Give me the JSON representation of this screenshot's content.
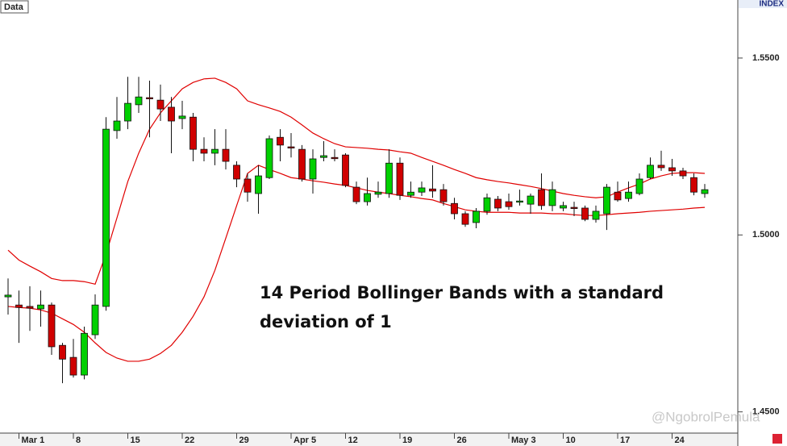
{
  "chart_data": {
    "type": "candlestick",
    "source_label": "Data",
    "axis_label": "INDEX",
    "annotation": [
      "14 Period Bollinger Bands with a standard",
      "deviation of 1"
    ],
    "watermark": "@NgobrolPemula",
    "up_color": "#00d000",
    "down_color": "#d00000",
    "categories": [
      null,
      "Mar 1",
      null,
      null,
      null,
      null,
      "8",
      null,
      null,
      null,
      null,
      "15",
      null,
      null,
      null,
      null,
      "22",
      null,
      null,
      null,
      null,
      "29",
      null,
      null,
      null,
      null,
      "Apr 5",
      null,
      null,
      null,
      null,
      "12",
      null,
      null,
      null,
      null,
      "19",
      null,
      null,
      null,
      null,
      "26",
      null,
      null,
      null,
      null,
      "May 3",
      null,
      null,
      null,
      null,
      "10",
      null,
      null,
      null,
      null,
      "17",
      null,
      null,
      null,
      null,
      "24",
      null,
      null,
      null
    ],
    "open": [
      1.4825,
      1.4802,
      1.4798,
      1.4791,
      1.4802,
      1.4688,
      1.4654,
      1.4604,
      1.4718,
      1.4798,
      1.5295,
      1.5322,
      1.5368,
      1.5388,
      1.5381,
      1.5361,
      1.5329,
      1.5333,
      1.5242,
      1.5231,
      1.5242,
      1.5197,
      1.5158,
      1.5117,
      1.5162,
      1.5276,
      1.5249,
      1.5242,
      1.5158,
      1.5219,
      1.5219,
      1.5226,
      1.5135,
      1.5094,
      1.5115,
      1.5117,
      1.5203,
      1.5112,
      1.5121,
      1.513,
      1.5128,
      1.5089,
      1.506,
      1.5035,
      1.5067,
      1.5101,
      1.5094,
      1.5094,
      1.5087,
      1.5128,
      1.5083,
      1.5076,
      1.5078,
      1.5076,
      1.5044,
      1.506,
      1.5121,
      1.5103,
      1.5117,
      1.5162,
      1.5197,
      1.519,
      1.5181,
      1.5162,
      1.5117
    ],
    "high": [
      1.4877,
      1.4843,
      1.4855,
      1.4843,
      1.4809,
      1.4695,
      1.4706,
      1.4741,
      1.4832,
      1.5333,
      1.539,
      1.5447,
      1.5447,
      1.5436,
      1.5425,
      1.539,
      1.5379,
      1.5345,
      1.5276,
      1.5299,
      1.5299,
      1.5208,
      1.5174,
      1.5197,
      1.5281,
      1.5299,
      1.5288,
      1.5254,
      1.5242,
      1.5265,
      1.5242,
      1.5231,
      1.5151,
      1.5162,
      1.5151,
      1.5242,
      1.5219,
      1.5151,
      1.5151,
      1.5197,
      1.5144,
      1.5105,
      1.5067,
      1.5076,
      1.5117,
      1.511,
      1.5117,
      1.5128,
      1.5117,
      1.5174,
      1.5151,
      1.5094,
      1.5094,
      1.5083,
      1.5083,
      1.5144,
      1.5151,
      1.5151,
      1.5174,
      1.5219,
      1.5238,
      1.5215,
      1.519,
      1.5174,
      1.5144
    ],
    "low": [
      1.4775,
      1.4695,
      1.4729,
      1.4741,
      1.4661,
      1.4581,
      1.4597,
      1.4592,
      1.4706,
      1.4786,
      1.5272,
      1.5299,
      1.5345,
      1.5276,
      1.5322,
      1.5231,
      1.5299,
      1.5208,
      1.5208,
      1.5197,
      1.5185,
      1.5135,
      1.5094,
      1.506,
      1.5158,
      1.5208,
      1.5219,
      1.5151,
      1.5117,
      1.5208,
      1.5208,
      1.5135,
      1.5087,
      1.5083,
      1.5105,
      1.5105,
      1.5099,
      1.5105,
      1.511,
      1.5105,
      1.5083,
      1.5044,
      1.5023,
      1.5019,
      1.5057,
      1.5067,
      1.5071,
      1.5083,
      1.506,
      1.5071,
      1.5067,
      1.5067,
      1.5053,
      1.5039,
      1.5035,
      1.5014,
      1.5094,
      1.5094,
      1.5112,
      1.5158,
      1.5181,
      1.5167,
      1.5158,
      1.5112,
      1.5105
    ],
    "close": [
      1.483,
      1.4795,
      1.4793,
      1.4802,
      1.4684,
      1.4649,
      1.4604,
      1.4722,
      1.4802,
      1.5299,
      1.5322,
      1.5372,
      1.539,
      1.5386,
      1.5356,
      1.5322,
      1.5336,
      1.5242,
      1.5231,
      1.5242,
      1.5208,
      1.5158,
      1.5121,
      1.5167,
      1.5272,
      1.5254,
      1.5247,
      1.5158,
      1.5215,
      1.5224,
      1.5217,
      1.514,
      1.5094,
      1.5117,
      1.5121,
      1.5203,
      1.5112,
      1.5121,
      1.5133,
      1.5124,
      1.5094,
      1.506,
      1.503,
      1.5067,
      1.5105,
      1.5076,
      1.508,
      1.5096,
      1.511,
      1.5083,
      1.5128,
      1.5083,
      1.5076,
      1.5044,
      1.5067,
      1.5135,
      1.5099,
      1.5121,
      1.5158,
      1.5197,
      1.519,
      1.5181,
      1.5167,
      1.5121,
      1.5128
    ],
    "bands": {
      "color": "#e00000",
      "upper": [
        1.4957,
        1.4929,
        1.4912,
        1.4896,
        1.4877,
        1.4871,
        1.4871,
        1.4868,
        1.4861,
        1.4946,
        1.5048,
        1.5151,
        1.5231,
        1.5299,
        1.5345,
        1.5379,
        1.5413,
        1.5431,
        1.5441,
        1.5443,
        1.5431,
        1.5413,
        1.5379,
        1.5368,
        1.5359,
        1.5349,
        1.5333,
        1.5311,
        1.5288,
        1.5272,
        1.5258,
        1.5249,
        1.5247,
        1.5245,
        1.5242,
        1.524,
        1.5235,
        1.5231,
        1.5219,
        1.5208,
        1.5197,
        1.5185,
        1.5174,
        1.5162,
        1.5156,
        1.5151,
        1.5147,
        1.5142,
        1.5137,
        1.5131,
        1.5124,
        1.5117,
        1.5112,
        1.5108,
        1.5105,
        1.5108,
        1.5121,
        1.5133,
        1.5144,
        1.5158,
        1.5167,
        1.5174,
        1.5176,
        1.5176,
        1.5174
      ],
      "lower": [
        1.4798,
        1.4795,
        1.4793,
        1.4788,
        1.4779,
        1.4763,
        1.4747,
        1.4725,
        1.4695,
        1.4668,
        1.4652,
        1.4643,
        1.4643,
        1.4649,
        1.4665,
        1.4688,
        1.4725,
        1.477,
        1.4825,
        1.49,
        1.4991,
        1.5083,
        1.5174,
        1.5197,
        1.5185,
        1.5174,
        1.5162,
        1.5158,
        1.5153,
        1.5149,
        1.5144,
        1.514,
        1.5133,
        1.5126,
        1.5121,
        1.5117,
        1.5112,
        1.5108,
        1.5103,
        1.5099,
        1.5089,
        1.508,
        1.5071,
        1.5067,
        1.5064,
        1.5064,
        1.5064,
        1.5062,
        1.5062,
        1.5062,
        1.506,
        1.506,
        1.5057,
        1.5055,
        1.5055,
        1.5057,
        1.506,
        1.5062,
        1.5064,
        1.5067,
        1.5069,
        1.5071,
        1.5073,
        1.5076,
        1.5078
      ]
    },
    "ylim": [
      1.444,
      1.5664
    ],
    "yticks": [
      {
        "value": 1.45,
        "label": "1.4500"
      },
      {
        "value": 1.5,
        "label": "1.5000"
      },
      {
        "value": 1.55,
        "label": "1.5500"
      }
    ]
  }
}
